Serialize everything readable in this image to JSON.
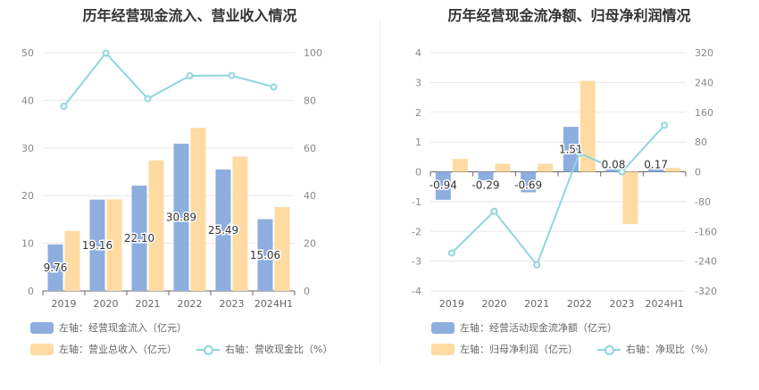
{
  "colors": {
    "blue": "#8eaedf",
    "orange": "#fedba2",
    "line": "#8ed6df",
    "grid": "#e8e8ee",
    "axis_text": "#888888",
    "label_text": "#333333"
  },
  "chart_data": [
    {
      "type": "bar",
      "title": "历年经营现金流入、营业收入情况",
      "categories": [
        "2019",
        "2020",
        "2021",
        "2022",
        "2023",
        "2024H1"
      ],
      "left_axis": {
        "ylim": [
          0,
          50
        ],
        "ticks": [
          "0",
          "10",
          "20",
          "30",
          "40",
          "50"
        ]
      },
      "right_axis": {
        "ylim": [
          0,
          100
        ],
        "ticks": [
          "0",
          "20",
          "40",
          "60",
          "80",
          "100"
        ]
      },
      "series": [
        {
          "name": "左轴：经营现金流入（亿元）",
          "kind": "bar",
          "axis": "left",
          "color": "#8eaedf",
          "values": [
            9.76,
            19.16,
            22.1,
            30.89,
            25.49,
            15.06
          ],
          "labels": [
            "9.76",
            "19.16",
            "22.10",
            "30.89",
            "25.49",
            "15.06"
          ]
        },
        {
          "name": "左轴：营业总收入（亿元）",
          "kind": "bar",
          "axis": "left",
          "color": "#fedba2",
          "values": [
            12.6,
            19.2,
            27.4,
            34.2,
            28.2,
            17.6
          ]
        },
        {
          "name": "右轴：营收现金比（%）",
          "kind": "line",
          "axis": "right",
          "color": "#8ed6df",
          "values": [
            77.5,
            99.8,
            80.7,
            90.3,
            90.4,
            85.6
          ]
        }
      ]
    },
    {
      "type": "bar",
      "title": "历年经营现金流净额、归母净利润情况",
      "categories": [
        "2019",
        "2020",
        "2021",
        "2022",
        "2023",
        "2024H1"
      ],
      "left_axis": {
        "ylim": [
          -4,
          4
        ],
        "ticks": [
          "-4",
          "-3",
          "-2",
          "-1",
          "0",
          "1",
          "2",
          "3",
          "4"
        ]
      },
      "right_axis": {
        "ylim": [
          -320,
          320
        ],
        "ticks": [
          "-320",
          "-240",
          "-160",
          "-80",
          "0",
          "80",
          "160",
          "240",
          "320"
        ]
      },
      "series": [
        {
          "name": "左轴：经营活动现金流净额（亿元）",
          "kind": "bar",
          "axis": "left",
          "color": "#8eaedf",
          "values": [
            -0.94,
            -0.29,
            -0.69,
            1.51,
            0.08,
            0.17
          ],
          "labels": [
            "-0.94",
            "-0.29",
            "-0.69",
            "1.51",
            "0.08",
            "0.17"
          ]
        },
        {
          "name": "左轴：归母净利润（亿元）",
          "kind": "bar",
          "axis": "left",
          "color": "#fedba2",
          "values": [
            0.43,
            0.27,
            0.27,
            3.05,
            -1.75,
            0.13
          ]
        },
        {
          "name": "右轴：净现比（%）",
          "kind": "line",
          "axis": "right",
          "color": "#8ed6df",
          "values": [
            -218,
            -106,
            -250,
            50,
            0,
            125
          ]
        }
      ]
    }
  ]
}
